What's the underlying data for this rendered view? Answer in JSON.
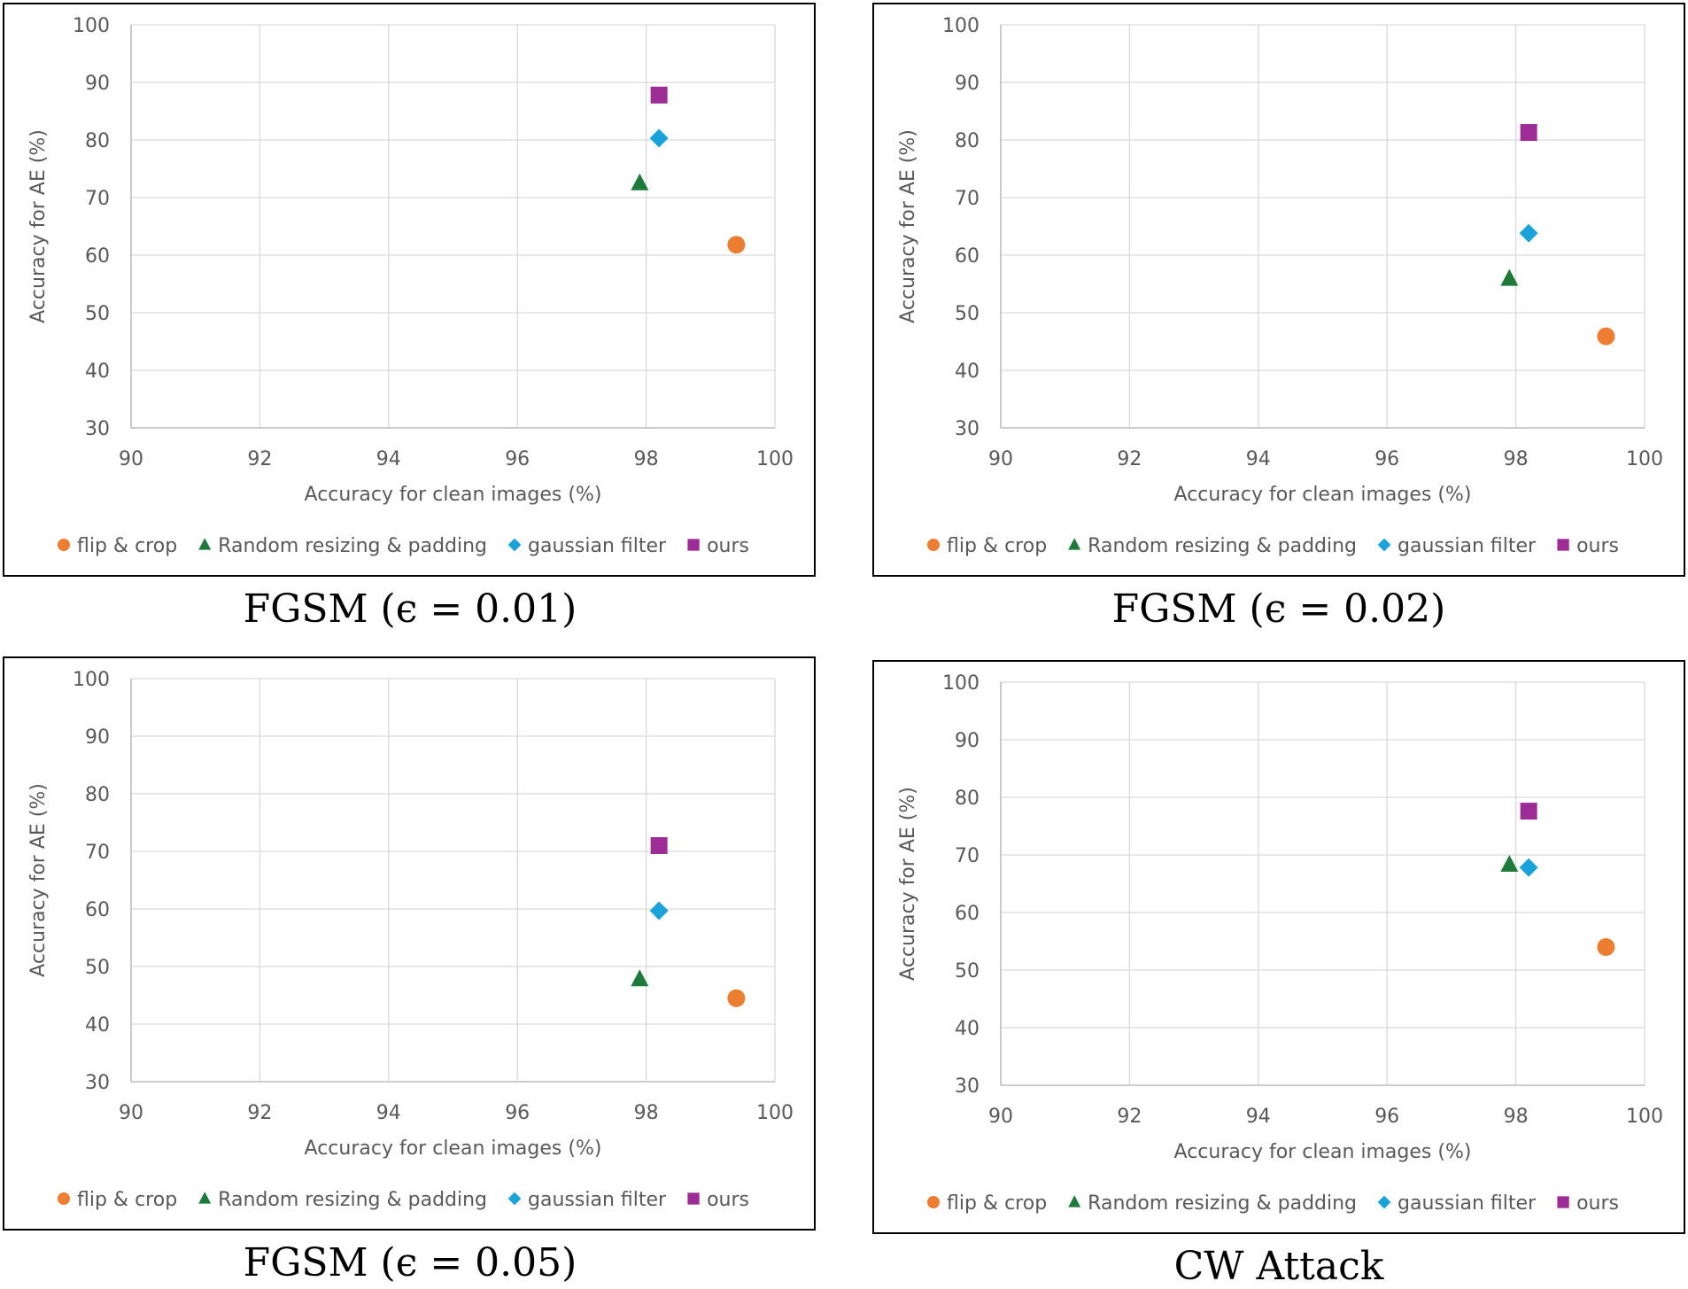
{
  "colors": {
    "flip_crop": "#ED7D31",
    "random_resize_pad": "#1E7A3A",
    "gaussian_filter": "#1AA3DB",
    "ours": "#9E2C96"
  },
  "chart_data": [
    {
      "type": "scatter",
      "caption": "FGSM (ϵ = 0.01)",
      "xlabel": "Accuracy for clean images (%)",
      "ylabel": "Accuracy for AE (%)",
      "xlim": [
        90,
        100
      ],
      "ylim": [
        30,
        100
      ],
      "xticks": [
        "90",
        "92",
        "94",
        "96",
        "98",
        "100"
      ],
      "yticks": [
        "30",
        "40",
        "50",
        "60",
        "70",
        "80",
        "90",
        "100"
      ],
      "grid": true,
      "legend_position": "bottom",
      "series": [
        {
          "name": "flip & crop",
          "marker": "circle",
          "points": [
            {
              "x": 99.4,
              "y": 61.8
            }
          ]
        },
        {
          "name": "Random resizing & padding",
          "marker": "triangle",
          "points": [
            {
              "x": 97.9,
              "y": 72.5
            }
          ]
        },
        {
          "name": "gaussian filter",
          "marker": "diamond",
          "points": [
            {
              "x": 98.2,
              "y": 80.3
            }
          ]
        },
        {
          "name": "ours",
          "marker": "square",
          "points": [
            {
              "x": 98.2,
              "y": 87.8
            }
          ]
        }
      ]
    },
    {
      "type": "scatter",
      "caption": "FGSM (ϵ = 0.02)",
      "xlabel": "Accuracy for clean images (%)",
      "ylabel": "Accuracy for AE (%)",
      "xlim": [
        90,
        100
      ],
      "ylim": [
        30,
        100
      ],
      "xticks": [
        "90",
        "92",
        "94",
        "96",
        "98",
        "100"
      ],
      "yticks": [
        "30",
        "40",
        "50",
        "60",
        "70",
        "80",
        "90",
        "100"
      ],
      "grid": true,
      "legend_position": "bottom",
      "series": [
        {
          "name": "flip & crop",
          "marker": "circle",
          "points": [
            {
              "x": 99.4,
              "y": 45.9
            }
          ]
        },
        {
          "name": "Random resizing & padding",
          "marker": "triangle",
          "points": [
            {
              "x": 97.9,
              "y": 55.9
            }
          ]
        },
        {
          "name": "gaussian filter",
          "marker": "diamond",
          "points": [
            {
              "x": 98.2,
              "y": 63.8
            }
          ]
        },
        {
          "name": "ours",
          "marker": "square",
          "points": [
            {
              "x": 98.2,
              "y": 81.3
            }
          ]
        }
      ]
    },
    {
      "type": "scatter",
      "caption": "FGSM (ϵ = 0.05)",
      "xlabel": "Accuracy for clean images (%)",
      "ylabel": "Accuracy for AE (%)",
      "xlim": [
        90,
        100
      ],
      "ylim": [
        30,
        100
      ],
      "xticks": [
        "90",
        "92",
        "94",
        "96",
        "98",
        "100"
      ],
      "yticks": [
        "30",
        "40",
        "50",
        "60",
        "70",
        "80",
        "90",
        "100"
      ],
      "grid": true,
      "legend_position": "bottom",
      "series": [
        {
          "name": "flip & crop",
          "marker": "circle",
          "points": [
            {
              "x": 99.4,
              "y": 44.5
            }
          ]
        },
        {
          "name": "Random resizing & padding",
          "marker": "triangle",
          "points": [
            {
              "x": 97.9,
              "y": 47.8
            }
          ]
        },
        {
          "name": "gaussian filter",
          "marker": "diamond",
          "points": [
            {
              "x": 98.2,
              "y": 59.7
            }
          ]
        },
        {
          "name": "ours",
          "marker": "square",
          "points": [
            {
              "x": 98.2,
              "y": 71.0
            }
          ]
        }
      ]
    },
    {
      "type": "scatter",
      "caption": "CW Attack",
      "xlabel": "Accuracy for clean images (%)",
      "ylabel": "Accuracy for AE (%)",
      "xlim": [
        90,
        100
      ],
      "ylim": [
        30,
        100
      ],
      "xticks": [
        "90",
        "92",
        "94",
        "96",
        "98",
        "100"
      ],
      "yticks": [
        "30",
        "40",
        "50",
        "60",
        "70",
        "80",
        "90",
        "100"
      ],
      "grid": true,
      "legend_position": "bottom",
      "series": [
        {
          "name": "flip & crop",
          "marker": "circle",
          "points": [
            {
              "x": 99.4,
              "y": 54.0
            }
          ]
        },
        {
          "name": "Random resizing & padding",
          "marker": "triangle",
          "points": [
            {
              "x": 97.9,
              "y": 68.3
            }
          ]
        },
        {
          "name": "gaussian filter",
          "marker": "diamond",
          "points": [
            {
              "x": 98.2,
              "y": 67.8
            }
          ]
        },
        {
          "name": "ours",
          "marker": "square",
          "points": [
            {
              "x": 98.2,
              "y": 77.6
            }
          ]
        }
      ]
    }
  ]
}
